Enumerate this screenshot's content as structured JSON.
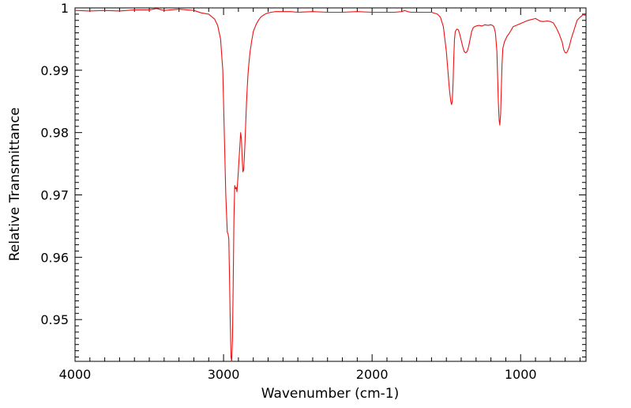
{
  "chart_data": {
    "type": "line",
    "title": "",
    "xlabel": "Wavenumber (cm-1)",
    "ylabel": "Relative Transmittance",
    "x_reversed": true,
    "xlim": [
      4000,
      560
    ],
    "ylim": [
      0.9433,
      1.0
    ],
    "x_ticks": [
      4000,
      3000,
      2000,
      1000
    ],
    "x_tick_labels": [
      "4000",
      "3000",
      "2000",
      "1000"
    ],
    "y_ticks": [
      1.0,
      0.99,
      0.98,
      0.97,
      0.96,
      0.95
    ],
    "y_tick_labels": [
      "1",
      "0.99",
      "0.98",
      "0.97",
      "0.96",
      "0.95"
    ],
    "grid": false,
    "line_color": "#ee1111",
    "series": [
      {
        "x": [
          4000,
          3900,
          3800,
          3700,
          3600,
          3500,
          3450,
          3400,
          3300,
          3200,
          3150,
          3100,
          3060,
          3040,
          3020,
          3005,
          2995,
          2985,
          2975,
          2970,
          2965,
          2960,
          2955,
          2950,
          2945,
          2940,
          2935,
          2930,
          2925,
          2920,
          2915,
          2910,
          2905,
          2900,
          2895,
          2890,
          2885,
          2880,
          2875,
          2870,
          2865,
          2860,
          2855,
          2850,
          2845,
          2840,
          2835,
          2830,
          2825,
          2820,
          2815,
          2810,
          2805,
          2800,
          2790,
          2780,
          2770,
          2760,
          2750,
          2740,
          2720,
          2700,
          2680,
          2650,
          2600,
          2550,
          2500,
          2400,
          2300,
          2200,
          2100,
          2000,
          1900,
          1850,
          1800,
          1780,
          1760,
          1740,
          1720,
          1700,
          1650,
          1600,
          1560,
          1540,
          1520,
          1500,
          1490,
          1480,
          1470,
          1465,
          1460,
          1455,
          1450,
          1445,
          1440,
          1430,
          1420,
          1410,
          1400,
          1390,
          1380,
          1370,
          1360,
          1350,
          1340,
          1330,
          1320,
          1310,
          1300,
          1280,
          1260,
          1240,
          1220,
          1200,
          1190,
          1180,
          1170,
          1160,
          1155,
          1150,
          1145,
          1140,
          1135,
          1130,
          1125,
          1120,
          1110,
          1100,
          1090,
          1080,
          1070,
          1060,
          1050,
          1000,
          950,
          900,
          870,
          850,
          820,
          800,
          780,
          760,
          740,
          720,
          710,
          700,
          690,
          680,
          670,
          660,
          640,
          620,
          600,
          580,
          560
        ],
        "y": [
          0.9996,
          0.9995,
          0.9996,
          0.9995,
          0.9997,
          0.9997,
          0.9999,
          0.9996,
          0.9998,
          0.9996,
          0.9992,
          0.999,
          0.9982,
          0.9972,
          0.995,
          0.99,
          0.98,
          0.97,
          0.964,
          0.9638,
          0.963,
          0.957,
          0.95,
          0.944,
          0.9433,
          0.947,
          0.956,
          0.966,
          0.9715,
          0.971,
          0.9712,
          0.9705,
          0.972,
          0.974,
          0.976,
          0.978,
          0.98,
          0.979,
          0.976,
          0.9737,
          0.974,
          0.976,
          0.979,
          0.982,
          0.985,
          0.9875,
          0.9895,
          0.991,
          0.9922,
          0.9932,
          0.994,
          0.9948,
          0.9955,
          0.9962,
          0.9968,
          0.9974,
          0.9978,
          0.9982,
          0.9985,
          0.9987,
          0.999,
          0.9992,
          0.9993,
          0.9994,
          0.9994,
          0.9994,
          0.9993,
          0.9994,
          0.9993,
          0.9993,
          0.9994,
          0.9993,
          0.9993,
          0.9993,
          0.9994,
          0.9996,
          0.9994,
          0.9993,
          0.9993,
          0.9993,
          0.9993,
          0.9993,
          0.999,
          0.9985,
          0.997,
          0.993,
          0.99,
          0.987,
          0.985,
          0.9845,
          0.985,
          0.988,
          0.992,
          0.995,
          0.9962,
          0.9966,
          0.9965,
          0.9958,
          0.9948,
          0.9938,
          0.993,
          0.9928,
          0.993,
          0.9938,
          0.995,
          0.9962,
          0.9968,
          0.997,
          0.9971,
          0.9972,
          0.9971,
          0.9973,
          0.9972,
          0.9973,
          0.9972,
          0.997,
          0.996,
          0.993,
          0.989,
          0.985,
          0.982,
          0.9812,
          0.983,
          0.987,
          0.991,
          0.9935,
          0.9945,
          0.995,
          0.9955,
          0.9958,
          0.9962,
          0.9966,
          0.997,
          0.9975,
          0.998,
          0.9983,
          0.9979,
          0.9978,
          0.9979,
          0.9978,
          0.9976,
          0.9968,
          0.9958,
          0.9945,
          0.9933,
          0.9928,
          0.9928,
          0.9933,
          0.994,
          0.995,
          0.9965,
          0.998,
          0.9985,
          0.9989,
          0.9988
        ]
      }
    ]
  }
}
